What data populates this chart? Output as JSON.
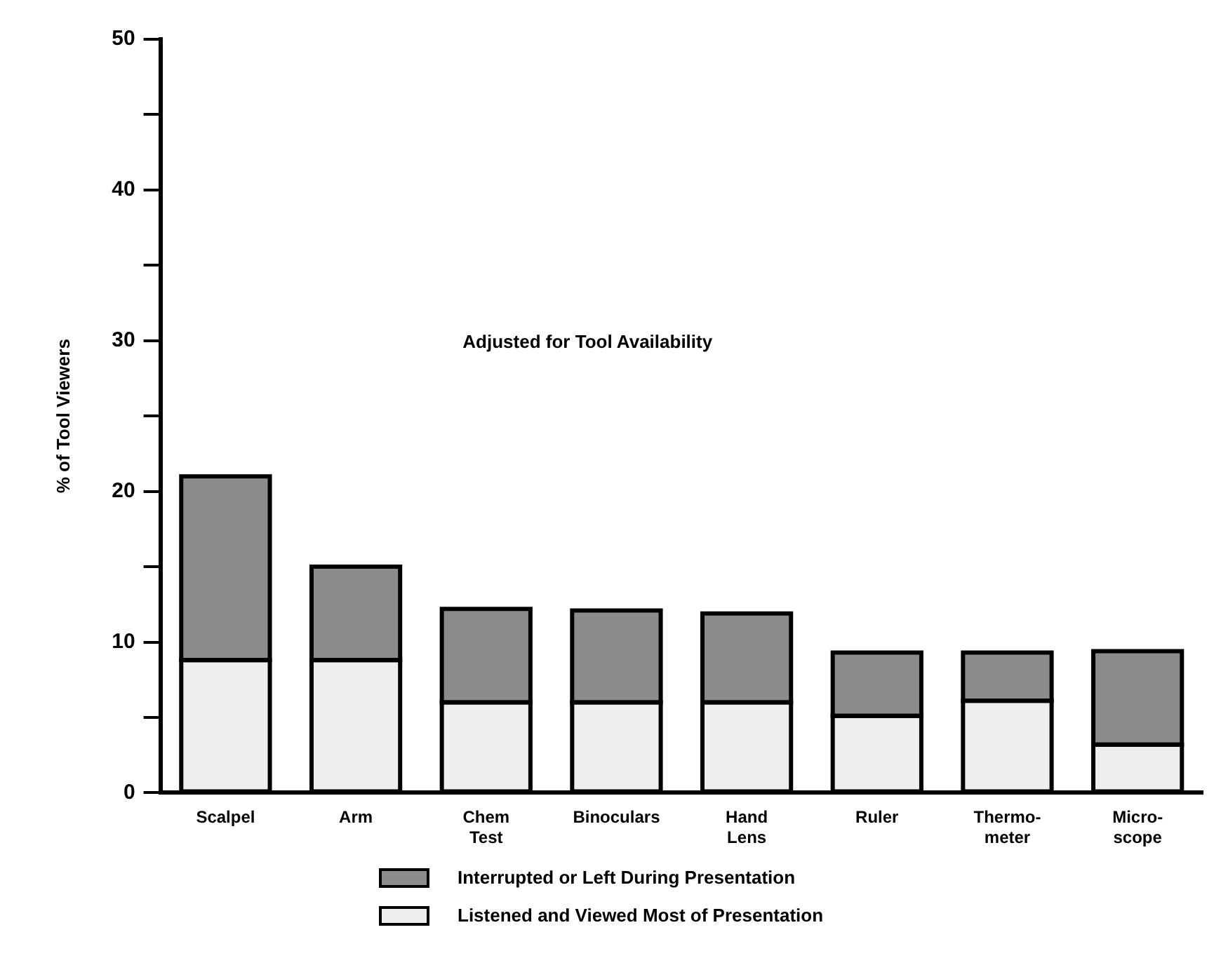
{
  "chart_data": {
    "type": "bar",
    "stacked": true,
    "ylabel": "% of Tool Viewers",
    "annotations": [
      "Adjusted for Tool Availability"
    ],
    "categories": [
      "Scalpel",
      "Arm",
      "Chem Test",
      "Binoculars",
      "Hand Lens",
      "Ruler",
      "Thermo-meter",
      "Micro-scope"
    ],
    "series": [
      {
        "name": "Listened and Viewed Most of Presentation",
        "color": "#eeeeee",
        "values": [
          8.8,
          8.8,
          6.0,
          6.0,
          6.0,
          5.1,
          6.1,
          3.2
        ]
      },
      {
        "name": "Interrupted or Left During Presentation",
        "color": "#8c8c8c",
        "values": [
          12.2,
          6.2,
          6.2,
          6.1,
          5.9,
          4.2,
          3.2,
          6.2
        ]
      }
    ],
    "ylim": [
      0,
      50
    ],
    "yticks": [
      0,
      {
        "value": 5,
        "label": null
      },
      10,
      {
        "value": 15,
        "label": null
      },
      20,
      {
        "value": 25,
        "label": null
      },
      30,
      {
        "value": 35,
        "label": null
      },
      40,
      {
        "value": 45,
        "label": null
      },
      50
    ],
    "grid": false,
    "legend": "bottom"
  }
}
